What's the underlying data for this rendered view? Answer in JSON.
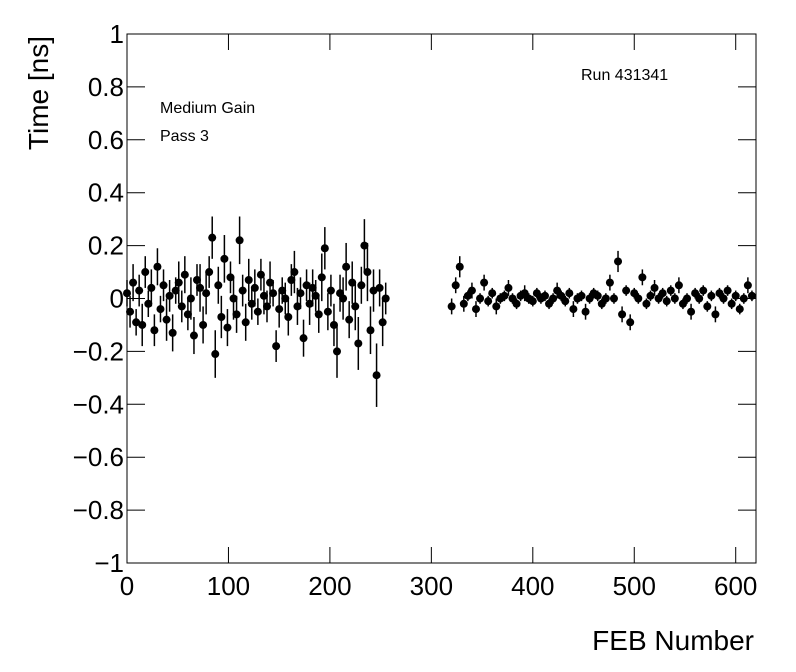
{
  "chart_data": {
    "type": "scatter",
    "xlabel": "FEB Number",
    "ylabel": "Time [ns]",
    "annotations": [
      "Medium Gain",
      "Pass 3",
      "Run 431341"
    ],
    "xlim": [
      0,
      620
    ],
    "xticks": [
      0,
      100,
      200,
      300,
      400,
      500,
      600
    ],
    "ylim": [
      -1,
      1
    ],
    "yticks": [
      {
        "value": -1,
        "label": "−1"
      },
      {
        "value": -0.8,
        "label": "−0.8"
      },
      {
        "value": -0.6,
        "label": "−0.6"
      },
      {
        "value": -0.4,
        "label": "−0.4"
      },
      {
        "value": -0.2,
        "label": "−0.2"
      },
      0,
      0.2,
      0.4,
      0.6,
      0.8,
      1
    ],
    "series": [
      {
        "color": "#000000",
        "x": [
          0,
          3,
          6,
          9,
          12,
          15,
          18,
          21,
          24,
          27,
          30,
          33,
          36,
          39,
          42,
          45,
          48,
          51,
          54,
          57,
          60,
          63,
          66,
          69,
          72,
          75,
          78,
          81,
          84,
          87,
          90,
          93,
          96,
          99,
          102,
          105,
          108,
          111,
          114,
          117,
          120,
          123,
          126,
          129,
          132,
          135,
          138,
          141,
          144,
          147,
          150,
          153,
          156,
          159,
          162,
          165,
          168,
          171,
          174,
          177,
          180,
          183,
          186,
          189,
          192,
          195,
          198,
          201,
          204,
          207,
          210,
          213,
          216,
          219,
          222,
          225,
          228,
          231,
          234,
          237,
          240,
          243,
          246,
          249,
          252,
          255
        ],
        "values": [
          0.02,
          -0.05,
          0.06,
          -0.09,
          0.03,
          -0.1,
          0.1,
          -0.02,
          0.04,
          -0.12,
          0.12,
          -0.04,
          0.05,
          -0.08,
          0.01,
          -0.13,
          0.03,
          0.06,
          -0.03,
          0.09,
          -0.06,
          0.0,
          -0.14,
          0.07,
          0.04,
          -0.1,
          0.02,
          0.1,
          0.23,
          -0.21,
          0.05,
          -0.07,
          0.15,
          -0.11,
          0.08,
          0.0,
          -0.06,
          0.22,
          0.03,
          -0.09,
          0.07,
          -0.02,
          0.04,
          -0.05,
          0.09,
          0.01,
          -0.03,
          0.06,
          0.02,
          -0.18,
          -0.04,
          0.03,
          0.0,
          -0.07,
          0.07,
          0.1,
          -0.03,
          0.02,
          -0.15,
          0.05,
          -0.02,
          0.04,
          0.01,
          -0.06,
          0.08,
          0.19,
          -0.05,
          0.03,
          -0.1,
          -0.2,
          0.02,
          0.0,
          0.12,
          -0.08,
          0.06,
          -0.03,
          -0.17,
          0.05,
          0.2,
          0.1,
          -0.12,
          0.03,
          -0.29,
          0.04,
          -0.09,
          0.0
        ],
        "errors": [
          0.05,
          0.06,
          0.07,
          0.05,
          0.06,
          0.08,
          0.06,
          0.05,
          0.07,
          0.06,
          0.07,
          0.05,
          0.06,
          0.08,
          0.06,
          0.07,
          0.05,
          0.08,
          0.06,
          0.07,
          0.06,
          0.08,
          0.07,
          0.06,
          0.09,
          0.07,
          0.08,
          0.06,
          0.08,
          0.09,
          0.07,
          0.08,
          0.09,
          0.07,
          0.06,
          0.08,
          0.07,
          0.09,
          0.06,
          0.07,
          0.08,
          0.06,
          0.07,
          0.05,
          0.06,
          0.07,
          0.06,
          0.08,
          0.05,
          0.06,
          0.07,
          0.05,
          0.06,
          0.07,
          0.06,
          0.08,
          0.07,
          0.06,
          0.07,
          0.06,
          0.08,
          0.07,
          0.06,
          0.07,
          0.09,
          0.08,
          0.07,
          0.06,
          0.08,
          0.1,
          0.07,
          0.08,
          0.09,
          0.07,
          0.08,
          0.09,
          0.1,
          0.07,
          0.1,
          0.11,
          0.09,
          0.08,
          0.12,
          0.07,
          0.09,
          0.06
        ]
      },
      {
        "color": "#000000",
        "x": [
          320,
          324,
          328,
          332,
          336,
          340,
          344,
          348,
          352,
          356,
          360,
          364,
          368,
          372,
          376,
          380,
          384,
          388,
          392,
          396,
          400,
          404,
          408,
          412,
          416,
          420,
          424,
          428,
          432,
          436,
          440,
          444,
          448,
          452,
          456,
          460,
          464,
          468,
          472,
          476,
          480,
          484,
          488,
          492,
          496,
          500,
          504,
          508,
          512,
          516,
          520,
          524,
          528,
          532,
          536,
          540,
          544,
          548,
          552,
          556,
          560,
          564,
          568,
          572,
          576,
          580,
          584,
          588,
          592,
          596,
          600,
          604,
          608,
          612,
          616
        ],
        "values": [
          -0.03,
          0.05,
          0.12,
          -0.02,
          0.01,
          0.03,
          -0.04,
          0.0,
          0.06,
          -0.01,
          0.02,
          -0.03,
          0.0,
          0.01,
          0.04,
          0.0,
          -0.02,
          0.01,
          0.02,
          0.0,
          -0.01,
          0.02,
          0.0,
          0.01,
          -0.02,
          0.0,
          0.03,
          0.01,
          -0.01,
          0.02,
          -0.04,
          0.0,
          0.01,
          -0.05,
          0.0,
          0.02,
          0.01,
          -0.02,
          0.0,
          0.06,
          0.0,
          0.14,
          -0.06,
          0.03,
          -0.09,
          0.02,
          0.0,
          0.08,
          -0.02,
          0.01,
          0.04,
          0.0,
          0.02,
          -0.01,
          0.03,
          0.0,
          0.05,
          -0.02,
          0.0,
          -0.05,
          0.02,
          0.0,
          0.03,
          -0.03,
          0.01,
          -0.06,
          0.02,
          0.0,
          0.03,
          -0.02,
          0.01,
          -0.04,
          0.0,
          0.05,
          0.01
        ],
        "errors": [
          0.03,
          0.03,
          0.04,
          0.03,
          0.02,
          0.03,
          0.03,
          0.02,
          0.03,
          0.02,
          0.02,
          0.03,
          0.02,
          0.02,
          0.03,
          0.02,
          0.02,
          0.02,
          0.03,
          0.02,
          0.02,
          0.02,
          0.02,
          0.02,
          0.02,
          0.02,
          0.03,
          0.02,
          0.02,
          0.02,
          0.03,
          0.02,
          0.02,
          0.03,
          0.02,
          0.02,
          0.02,
          0.02,
          0.02,
          0.03,
          0.02,
          0.04,
          0.03,
          0.02,
          0.03,
          0.02,
          0.02,
          0.03,
          0.02,
          0.02,
          0.03,
          0.02,
          0.02,
          0.02,
          0.02,
          0.02,
          0.03,
          0.02,
          0.02,
          0.03,
          0.02,
          0.02,
          0.02,
          0.02,
          0.02,
          0.03,
          0.02,
          0.02,
          0.02,
          0.02,
          0.02,
          0.02,
          0.02,
          0.03,
          0.02
        ]
      }
    ]
  }
}
